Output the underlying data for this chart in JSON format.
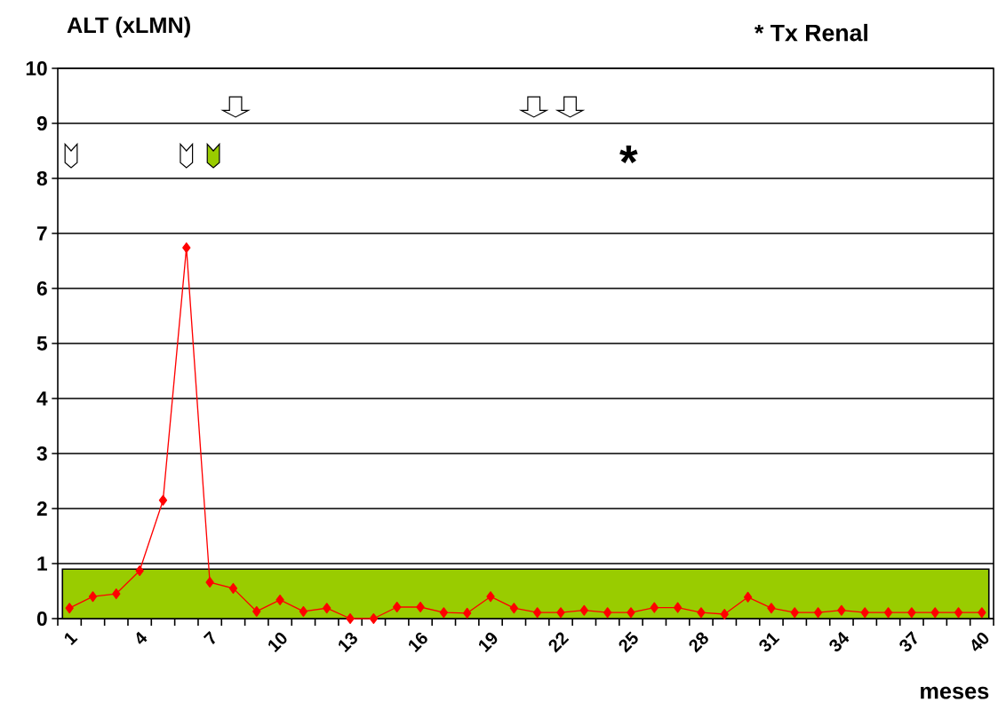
{
  "chart_data": {
    "type": "line",
    "ylabel": "ALT (xLMN)",
    "xlabel": "meses",
    "categories": [
      "1",
      null,
      null,
      "4",
      null,
      null,
      "7",
      null,
      null,
      "10",
      null,
      null,
      "13",
      null,
      null,
      "16",
      null,
      null,
      "19",
      null,
      null,
      "22",
      null,
      null,
      "25",
      null,
      null,
      "28",
      null,
      null,
      "31",
      null,
      null,
      "34",
      null,
      null,
      "37",
      null,
      null,
      "40"
    ],
    "series": [
      {
        "color": "#ff0000",
        "values": [
          0.19,
          0.4,
          0.45,
          0.87,
          2.15,
          6.74,
          0.66,
          0.55,
          0.13,
          0.34,
          0.13,
          0.19,
          0,
          0,
          0.21,
          0.21,
          0.11,
          0.1,
          0.4,
          0.19,
          0.11,
          0.11,
          0.15,
          0.11,
          0.11,
          0.2,
          0.2,
          0.11,
          0.08,
          0.39,
          0.19,
          0.11,
          0.11,
          0.15,
          0.11,
          0.11,
          0.11,
          0.11,
          0.11,
          0.11
        ]
      }
    ],
    "ylim": [
      0,
      10
    ],
    "yticks": [
      0,
      1,
      2,
      3,
      4,
      5,
      6,
      7,
      8,
      9,
      10
    ],
    "grid": "y",
    "marker": "diamond",
    "line_style": "solid",
    "bands": [
      {
        "axis": "y",
        "from": 0,
        "to": 0.9,
        "color": "#99cc00"
      }
    ],
    "annotations": [
      "* Tx Renal",
      "*"
    ]
  }
}
